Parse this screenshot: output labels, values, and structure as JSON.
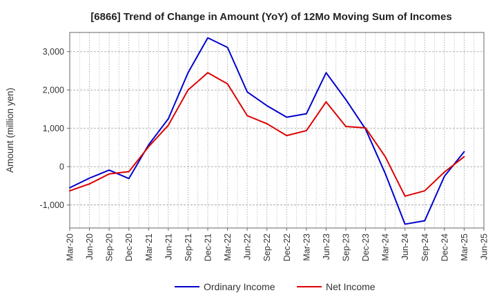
{
  "chart_data": {
    "type": "line",
    "title": "[6866]  Trend of Change in Amount (YoY) of 12Mo Moving Sum of Incomes",
    "ylabel": "Amount (million yen)",
    "xlabel": "",
    "ylim": [
      -1600,
      3500
    ],
    "yticks": [
      -1000,
      0,
      1000,
      2000,
      3000
    ],
    "ytick_labels": [
      "-1,000",
      "0",
      "1,000",
      "2,000",
      "3,000"
    ],
    "categories": [
      "Mar-20",
      "Jun-20",
      "Sep-20",
      "Dec-20",
      "Mar-21",
      "Jun-21",
      "Sep-21",
      "Dec-21",
      "Mar-22",
      "Jun-22",
      "Sep-22",
      "Dec-22",
      "Mar-23",
      "Jun-23",
      "Sep-23",
      "Dec-23",
      "Mar-24",
      "Jun-24",
      "Sep-24",
      "Dec-24",
      "Mar-25",
      "Jun-25"
    ],
    "grid": true,
    "legend_position": "bottom",
    "series": [
      {
        "name": "Ordinary Income",
        "color": "#0000cc",
        "values": [
          -550,
          -300,
          -90,
          -310,
          570,
          1250,
          2450,
          3360,
          3110,
          1950,
          1590,
          1290,
          1380,
          2450,
          1750,
          980,
          -180,
          -1500,
          -1410,
          -250,
          390,
          null
        ]
      },
      {
        "name": "Net Income",
        "color": "#dd0000",
        "values": [
          -630,
          -450,
          -190,
          -130,
          520,
          1080,
          2000,
          2450,
          2160,
          1330,
          1120,
          810,
          940,
          1690,
          1050,
          1010,
          260,
          -770,
          -630,
          -140,
          260,
          null
        ]
      }
    ]
  }
}
